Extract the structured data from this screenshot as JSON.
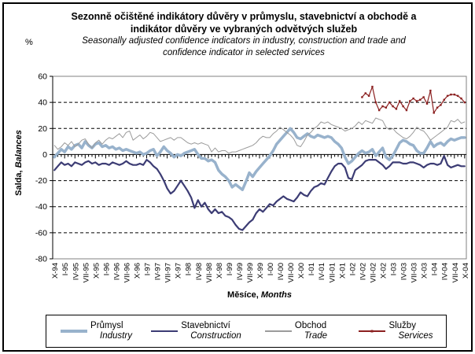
{
  "title": {
    "cs_line1": "Sezonně očištěné indikátory důvěry v průmyslu, stavebnictví a obchodě a",
    "cs_line2": "indikátor důvěry ve vybraných odvětvých služeb",
    "en_line1": "Seasonally adjusted confidence indicators in industry, construction and trade and",
    "en_line2": "confidence indicator in selected services"
  },
  "y_axis": {
    "unit": "%",
    "label_cs": "Salda,",
    "label_en": "Balances",
    "max": 60,
    "min": -80,
    "ticks": [
      60,
      40,
      20,
      0,
      -20,
      -40,
      -60,
      -80
    ]
  },
  "x_axis": {
    "label_cs": "Měsíce,",
    "label_en": "Months",
    "tick_labels": [
      "X-94",
      "I-95",
      "IV-95",
      "VII-95",
      "X-95",
      "I-96",
      "IV-96",
      "VII-96",
      "X-96",
      "I-97",
      "IV-97",
      "VII-97",
      "X-97",
      "I-98",
      "IV-98",
      "VII-98",
      "X-98",
      "I-99",
      "IV-99",
      "VII-99",
      "X-99",
      "I-00",
      "IV-00",
      "VII-00",
      "X-00",
      "I-01",
      "IV-01",
      "VII-01",
      "X-01",
      "I-02",
      "IV-02",
      "VII-02",
      "X-02",
      "I-03",
      "IV-03",
      "VII-03",
      "X-03",
      "I-04",
      "IV-04",
      "VII-04",
      "X-04"
    ]
  },
  "chart_data": {
    "type": "line",
    "n_months": 121,
    "x_start": "X-94",
    "x_end": "X-04",
    "x_step": "1 month",
    "ylim": [
      -80,
      60
    ],
    "gridlines": "dashed horizontal every 20",
    "legend_position": "bottom",
    "series": [
      {
        "label_cs": "Průmysl",
        "label_en": "Industry",
        "color": "#98B2CC",
        "stroke_width": 3.5,
        "marker": false,
        "start_index": 0,
        "values": [
          -2,
          1,
          4,
          2,
          6,
          4,
          7,
          8,
          5,
          10,
          7,
          5,
          8,
          9,
          6,
          7,
          5,
          6,
          4,
          5,
          3,
          4,
          3,
          2,
          1,
          2,
          0,
          1,
          3,
          4,
          -1,
          2,
          6,
          3,
          1,
          -2,
          0,
          -1,
          1,
          2,
          3,
          4,
          0,
          -3,
          -3,
          -5,
          -4,
          -6,
          -12,
          -15,
          -17,
          -20,
          -25,
          -23,
          -25,
          -27,
          -21,
          -14,
          -17,
          -13,
          -10,
          -7,
          -4,
          -1,
          3,
          8,
          11,
          14,
          17,
          20,
          17,
          13,
          12,
          14,
          16,
          14,
          13,
          15,
          14,
          13,
          14,
          13,
          10,
          8,
          5,
          -2,
          -7,
          -5,
          -2,
          1,
          3,
          1,
          2,
          4,
          -1,
          2,
          5,
          -2,
          -4,
          -1,
          4,
          9,
          11,
          10,
          8,
          7,
          3,
          1,
          1,
          5,
          10,
          6,
          8,
          9,
          7,
          10,
          12,
          11,
          12,
          13,
          13
        ]
      },
      {
        "label_cs": "Stavebnictví",
        "label_en": "Construction",
        "color": "#3C3C74",
        "stroke_width": 2.2,
        "marker": false,
        "start_index": 0,
        "values": [
          -12,
          -9,
          -6,
          -8,
          -7,
          -9,
          -6,
          -7,
          -8,
          -6,
          -5,
          -7,
          -6,
          -8,
          -7,
          -7,
          -8,
          -6,
          -7,
          -8,
          -7,
          -5,
          -7,
          -8,
          -8,
          -7,
          -8,
          -4,
          -6,
          -9,
          -11,
          -15,
          -20,
          -26,
          -30,
          -28,
          -24,
          -20,
          -24,
          -28,
          -33,
          -41,
          -35,
          -40,
          -37,
          -42,
          -45,
          -42,
          -45,
          -44,
          -47,
          -48,
          -50,
          -54,
          -57,
          -58,
          -55,
          -52,
          -50,
          -45,
          -42,
          -44,
          -41,
          -38,
          -39,
          -36,
          -34,
          -32,
          -34,
          -35,
          -36,
          -33,
          -29,
          -31,
          -32,
          -28,
          -25,
          -24,
          -22,
          -23,
          -18,
          -13,
          -9,
          -7,
          -7,
          -10,
          -18,
          -19,
          -12,
          -10,
          -8,
          -5,
          -4,
          -4,
          -4,
          -6,
          -8,
          -11,
          -9,
          -6,
          -6,
          -6,
          -7,
          -7,
          -6,
          -6,
          -7,
          -8,
          -10,
          -8,
          -7,
          -7,
          -8,
          -7,
          -1,
          -8,
          -10,
          -9,
          -8,
          -9,
          -9
        ]
      },
      {
        "label_cs": "Obchod",
        "label_en": "Trade",
        "color": "#9B9B9B",
        "stroke_width": 1,
        "marker": false,
        "start_index": 0,
        "values": [
          7,
          4,
          6,
          9,
          7,
          10,
          6,
          8,
          11,
          12,
          8,
          5,
          9,
          11,
          8,
          11,
          13,
          12,
          14,
          16,
          13,
          17,
          18,
          11,
          13,
          15,
          12,
          14,
          17,
          16,
          13,
          10,
          11,
          12,
          13,
          11,
          13,
          13,
          11,
          9,
          8,
          9,
          8,
          9,
          8,
          7,
          2,
          5,
          2,
          3,
          3,
          1,
          2,
          2,
          3,
          4,
          5,
          6,
          7,
          9,
          12,
          14,
          13,
          13,
          16,
          18,
          21,
          19,
          17,
          15,
          12,
          7,
          6,
          10,
          15,
          17,
          20,
          22,
          25,
          24,
          25,
          23,
          22,
          21,
          20,
          18,
          19,
          20,
          22,
          25,
          23,
          26,
          25,
          24,
          28,
          27,
          26,
          21,
          19,
          20,
          17,
          15,
          13,
          12,
          14,
          17,
          21,
          19,
          18,
          15,
          11,
          13,
          15,
          17,
          19,
          21,
          26,
          25,
          27,
          24,
          25
        ]
      },
      {
        "label_cs": "Služby",
        "label_en": "Services",
        "color": "#8B2020",
        "stroke_width": 1.2,
        "marker": true,
        "start_index": 90,
        "values": [
          44,
          47,
          45,
          52,
          40,
          34,
          37,
          36,
          40,
          37,
          35,
          41,
          37,
          34,
          41,
          43,
          41,
          42,
          44,
          39,
          49,
          32,
          36,
          38,
          42,
          45,
          46,
          46,
          45,
          43,
          40
        ]
      }
    ]
  }
}
